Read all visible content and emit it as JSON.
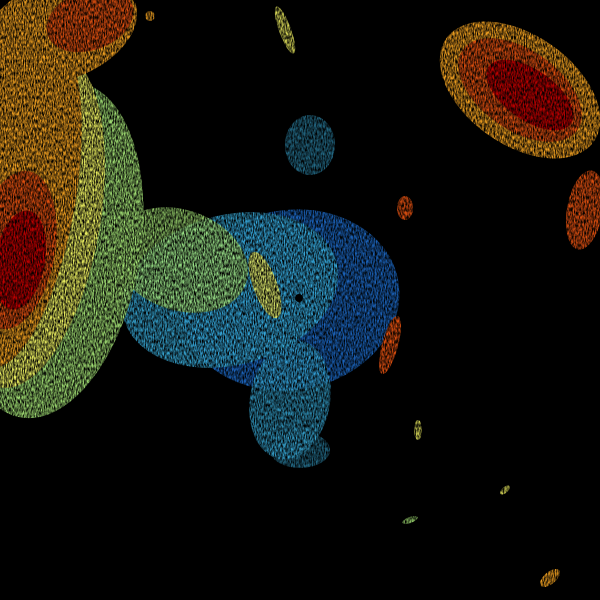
{
  "radar": {
    "background_color": "#000000",
    "palette": {
      "weak": "#1e6fd0",
      "light": "#3ab0e0",
      "moderate": "#a8e878",
      "elevated": "#f0f060",
      "strong": "#f0a020",
      "heavy": "#e05010",
      "intense": "#c00000"
    },
    "radar_site_marker_color": "#000000"
  }
}
